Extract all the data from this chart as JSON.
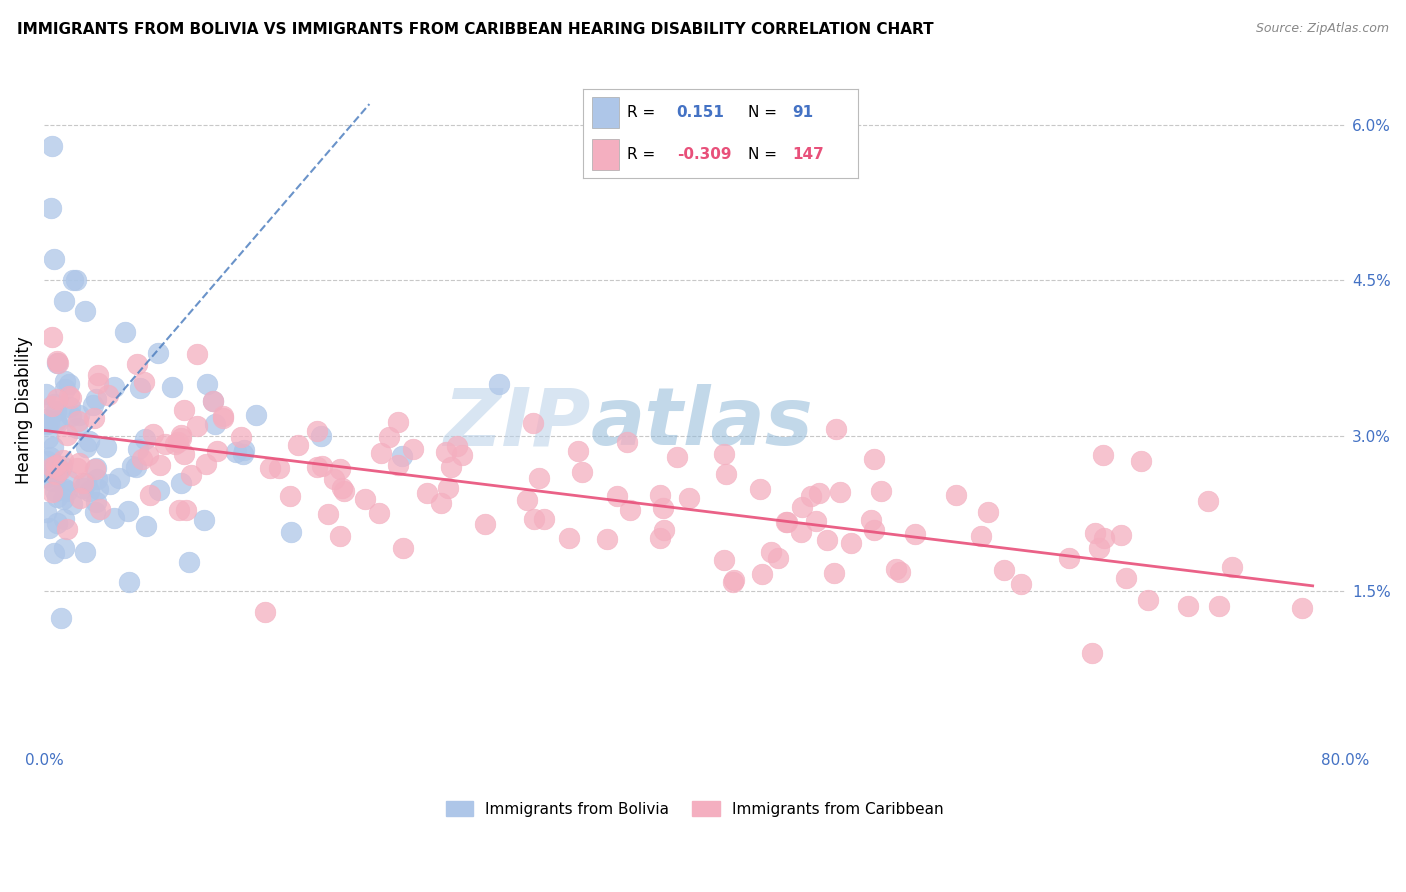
{
  "title": "IMMIGRANTS FROM BOLIVIA VS IMMIGRANTS FROM CARIBBEAN HEARING DISABILITY CORRELATION CHART",
  "source": "Source: ZipAtlas.com",
  "watermark_zip": "ZIP",
  "watermark_atlas": "atlas",
  "ylabel": "Hearing Disability",
  "x_label_bolivia": "Immigrants from Bolivia",
  "x_label_caribbean": "Immigrants from Caribbean",
  "xlim": [
    0.0,
    80.0
  ],
  "ylim": [
    0.0,
    6.5
  ],
  "yticks": [
    0.0,
    1.5,
    3.0,
    4.5,
    6.0
  ],
  "ytick_labels": [
    "",
    "1.5%",
    "3.0%",
    "4.5%",
    "6.0%"
  ],
  "xticks": [
    0.0,
    80.0
  ],
  "xtick_labels": [
    "0.0%",
    "80.0%"
  ],
  "R_bolivia": 0.151,
  "N_bolivia": 91,
  "R_caribbean": -0.309,
  "N_caribbean": 147,
  "color_bolivia": "#aec6e8",
  "color_caribbean": "#f4afc0",
  "trendline_bolivia": "#5080c0",
  "trendline_caribbean": "#e8507a",
  "background": "#ffffff",
  "grid_color": "#c8c8c8",
  "bolivia_trend_x": [
    0.0,
    20.0
  ],
  "bolivia_trend_y": [
    2.55,
    6.2
  ],
  "caribbean_trend_x": [
    0.0,
    78.0
  ],
  "caribbean_trend_y": [
    3.05,
    1.55
  ]
}
